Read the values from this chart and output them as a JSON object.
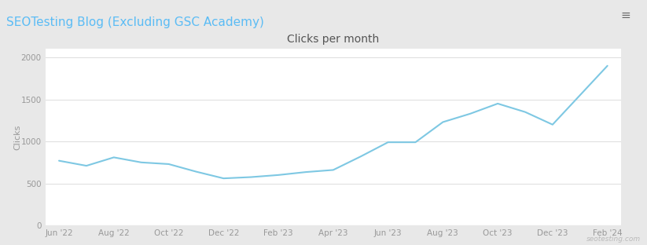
{
  "title": "Clicks per month",
  "subtitle": "SEOTesting Blog (Excluding GSC Academy)",
  "ylabel": "Clicks",
  "background_outer": "#e8e8e8",
  "background_inner": "#ffffff",
  "line_color": "#7ec8e3",
  "subtitle_color": "#5bbcf5",
  "title_color": "#555555",
  "watermark": "seotesting.com",
  "x_labels": [
    "Jun '22",
    "Aug '22",
    "Oct '22",
    "Dec '22",
    "Feb '23",
    "Apr '23",
    "Jun '23",
    "Aug '23",
    "Oct '23",
    "Dec '23",
    "Feb '24"
  ],
  "tick_positions": [
    0,
    2,
    4,
    6,
    8,
    10,
    12,
    14,
    16,
    18,
    20
  ],
  "data_y": [
    770,
    710,
    810,
    750,
    730,
    640,
    560,
    575,
    600,
    635,
    660,
    820,
    990,
    990,
    1230,
    1330,
    1450,
    1350,
    1200,
    1550,
    1900
  ],
  "ylim": [
    0,
    2100
  ],
  "yticks": [
    0,
    500,
    1000,
    1500,
    2000
  ]
}
